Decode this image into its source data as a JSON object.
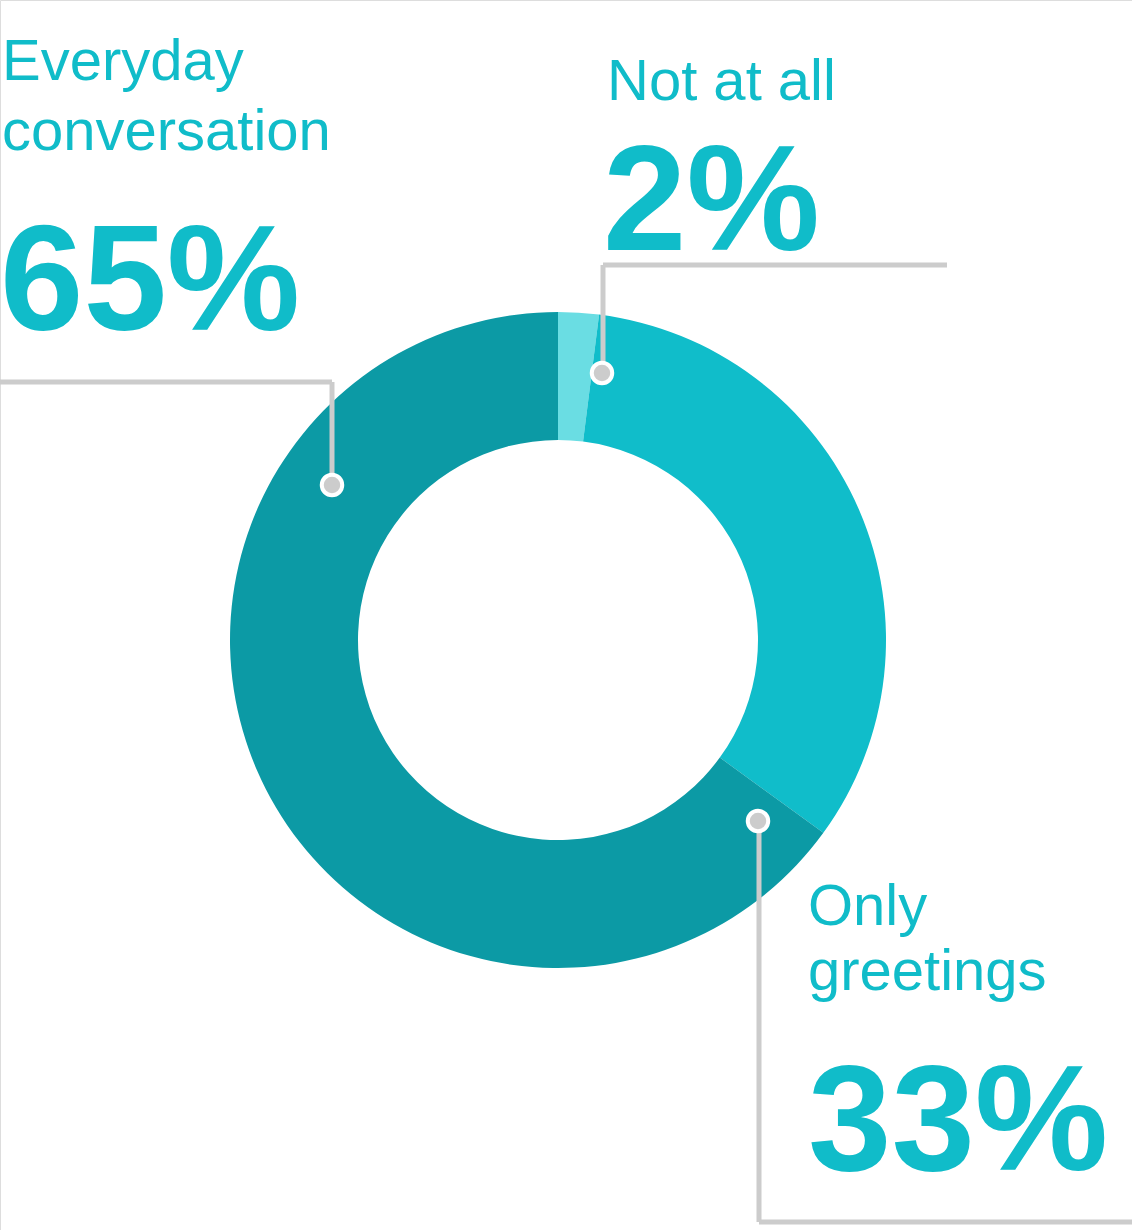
{
  "chart_data": {
    "type": "donut",
    "categories": [
      "Not at all",
      "Only greetings",
      "Everyday conversation"
    ],
    "values": [
      2,
      33,
      65
    ],
    "colors": [
      "#6adde3",
      "#10bdca",
      "#0c9aa5"
    ],
    "value_labels": [
      "2%",
      "33%",
      "65%"
    ]
  }
}
